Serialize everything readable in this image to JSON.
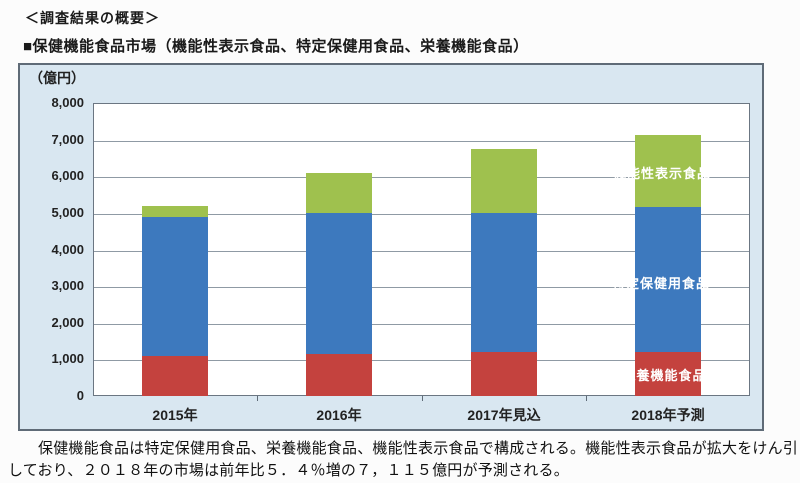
{
  "page": {
    "title": "＜調査結果の概要＞",
    "subtitle": "■保健機能食品市場（機能性表示食品、特定保健用食品、栄養機能食品）",
    "description_line1": "保健機能食品は特定保健用食品、栄養機能食品、機能性表示食品で構成される。機能性表示食品が拡大をけん引",
    "description_line2": "しており、２０１８年の市場は前年比５．４％増の７，１１５億円が予測される。"
  },
  "chart_data": {
    "type": "bar",
    "stacked": true,
    "title": "保健機能食品市場",
    "unit_label": "（億円）",
    "xlabel": "",
    "ylabel": "（億円）",
    "ylim": [
      0,
      8000
    ],
    "ytick_interval": 1000,
    "ytick_labels": [
      "0",
      "1,000",
      "2,000",
      "3,000",
      "4,000",
      "5,000",
      "6,000",
      "7,000",
      "8,000"
    ],
    "grid": true,
    "legend_position": "inline-labels-right",
    "categories": [
      "2015年",
      "2016年",
      "2017年見込",
      "2018年予測"
    ],
    "series": [
      {
        "name": "栄養機能食品",
        "color": "#c4423e",
        "values": [
          1100,
          1150,
          1200,
          1200
        ]
      },
      {
        "name": "特定保健用食品",
        "color": "#3d79be",
        "values": [
          3800,
          3850,
          3800,
          3950
        ]
      },
      {
        "name": "機能性表示食品",
        "color": "#9fc14e",
        "values": [
          300,
          1100,
          1750,
          1965
        ]
      }
    ],
    "stack_totals": [
      5200,
      6100,
      6750,
      7115
    ]
  },
  "colors": {
    "chart_background": "#d9e7f1",
    "plot_background": "#ffffff",
    "chart_border": "#5f6b77",
    "gridline": "#8f9aa4",
    "series_red": "#c4423e",
    "series_blue": "#3d79be",
    "series_green": "#9fc14e"
  }
}
